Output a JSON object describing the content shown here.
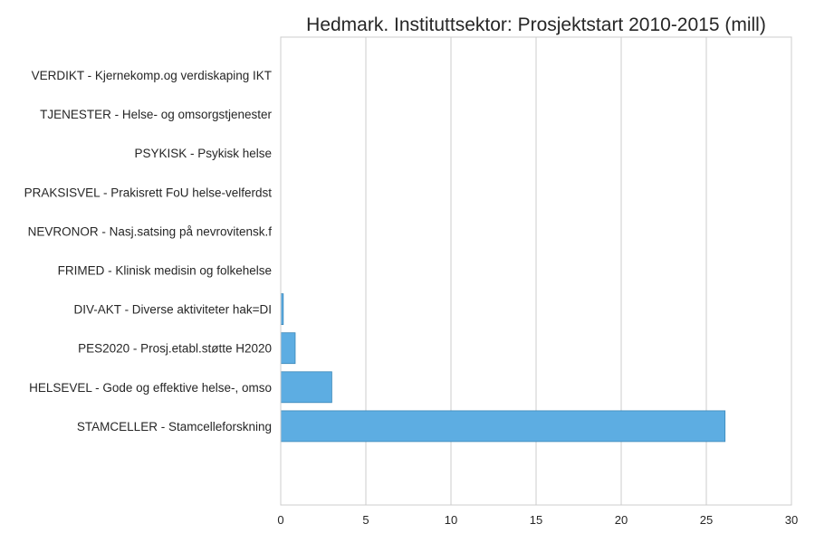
{
  "chart_data": {
    "type": "bar",
    "orientation": "horizontal",
    "title": "Hedmark. Instituttsektor: Prosjektstart 2010-2015 (mill)",
    "xlabel": "",
    "ylabel": "",
    "xlim": [
      0,
      30
    ],
    "xticks": [
      0,
      5,
      10,
      15,
      20,
      25,
      30
    ],
    "grid": "vertical",
    "bar_color": "#5DADE2",
    "categories": [
      "VERDIKT - Kjernekomp.og verdiskaping IKT",
      "TJENESTER - Helse- og omsorgstjenester",
      "PSYKISK - Psykisk helse",
      "PRAKSISVEL - Prakisrett FoU helse-velferdst",
      "NEVRONOR - Nasj.satsing på nevrovitensk.f",
      "FRIMED - Klinisk medisin og folkehelse",
      "DIV-AKT - Diverse aktiviteter hak=DI",
      "PES2020 - Prosj.etabl.støtte H2020",
      "HELSEVEL - Gode og effektive helse-, omso",
      "STAMCELLER - Stamcelleforskning"
    ],
    "values": [
      0.01,
      0.01,
      0.01,
      0.01,
      0.01,
      0.02,
      0.15,
      0.85,
      3.0,
      26.1
    ]
  }
}
